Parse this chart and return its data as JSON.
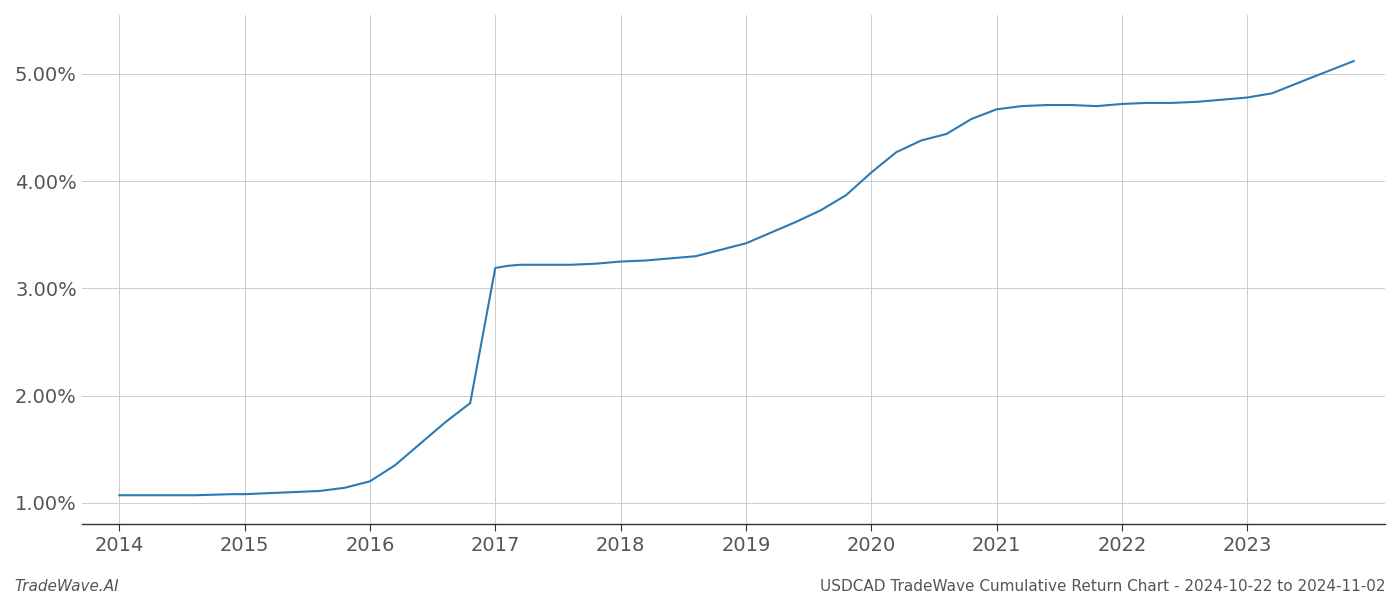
{
  "x_years": [
    2014.0,
    2014.3,
    2014.6,
    2014.9,
    2015.0,
    2015.2,
    2015.4,
    2015.6,
    2015.8,
    2016.0,
    2016.2,
    2016.4,
    2016.6,
    2016.8,
    2017.0,
    2017.1,
    2017.2,
    2017.4,
    2017.6,
    2017.8,
    2018.0,
    2018.2,
    2018.4,
    2018.6,
    2018.8,
    2019.0,
    2019.2,
    2019.4,
    2019.6,
    2019.8,
    2020.0,
    2020.2,
    2020.4,
    2020.6,
    2020.8,
    2021.0,
    2021.2,
    2021.4,
    2021.6,
    2021.8,
    2022.0,
    2022.2,
    2022.4,
    2022.6,
    2022.8,
    2023.0,
    2023.2,
    2023.5,
    2023.85
  ],
  "y_values": [
    1.07,
    1.07,
    1.07,
    1.08,
    1.08,
    1.09,
    1.1,
    1.11,
    1.14,
    1.2,
    1.35,
    1.55,
    1.75,
    1.93,
    3.19,
    3.21,
    3.22,
    3.22,
    3.22,
    3.23,
    3.25,
    3.26,
    3.28,
    3.3,
    3.36,
    3.42,
    3.52,
    3.62,
    3.73,
    3.87,
    4.08,
    4.27,
    4.38,
    4.44,
    4.58,
    4.67,
    4.7,
    4.71,
    4.71,
    4.7,
    4.72,
    4.73,
    4.73,
    4.74,
    4.76,
    4.78,
    4.82,
    4.96,
    5.12
  ],
  "line_color": "#2a7ab5",
  "line_width": 1.5,
  "background_color": "#ffffff",
  "grid_color": "#cccccc",
  "footer_left": "TradeWave.AI",
  "footer_right": "USDCAD TradeWave Cumulative Return Chart - 2024-10-22 to 2024-11-02",
  "x_ticks": [
    2014,
    2015,
    2016,
    2017,
    2018,
    2019,
    2020,
    2021,
    2022,
    2023
  ],
  "x_tick_labels": [
    "2014",
    "2015",
    "2016",
    "2017",
    "2018",
    "2019",
    "2020",
    "2021",
    "2022",
    "2023"
  ],
  "y_ticks": [
    1.0,
    2.0,
    3.0,
    4.0,
    5.0
  ],
  "y_tick_labels": [
    "1.00%",
    "2.00%",
    "3.00%",
    "4.00%",
    "5.00%"
  ],
  "xlim": [
    2013.7,
    2024.1
  ],
  "ylim": [
    0.8,
    5.55
  ],
  "tick_label_color": "#555555",
  "axis_color": "#333333",
  "footer_color_left": "#555555",
  "footer_color_right": "#555555",
  "footer_fontsize": 11,
  "tick_fontsize": 14
}
